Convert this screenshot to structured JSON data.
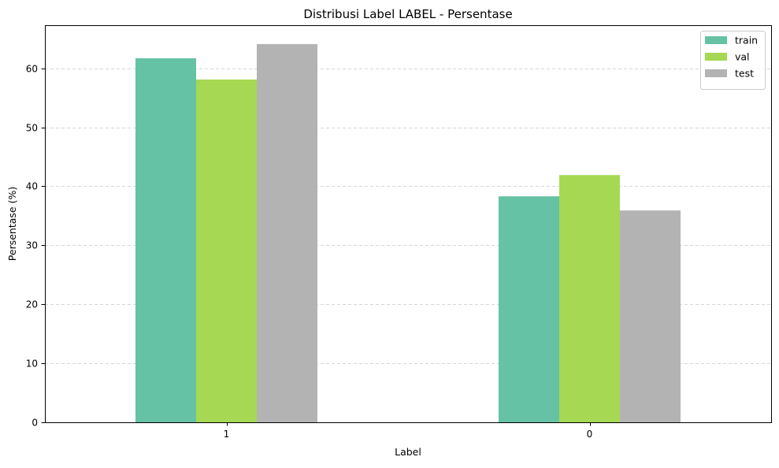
{
  "chart_data": {
    "type": "bar",
    "title": "Distribusi Label LABEL - Persentase",
    "xlabel": "Label",
    "ylabel": "Persentase (%)",
    "categories": [
      "1",
      "0"
    ],
    "series": [
      {
        "name": "train",
        "color": "#66c2a5",
        "values": [
          61.7,
          38.3
        ]
      },
      {
        "name": "val",
        "color": "#a6d854",
        "values": [
          58.1,
          41.9
        ]
      },
      {
        "name": "test",
        "color": "#b3b3b3",
        "values": [
          64.1,
          35.9
        ]
      }
    ],
    "ylim": [
      0,
      67.3
    ],
    "yticks": [
      "0",
      "10",
      "20",
      "30",
      "40",
      "50",
      "60"
    ],
    "grid": "y-dashed",
    "legend_position": "top-right"
  }
}
